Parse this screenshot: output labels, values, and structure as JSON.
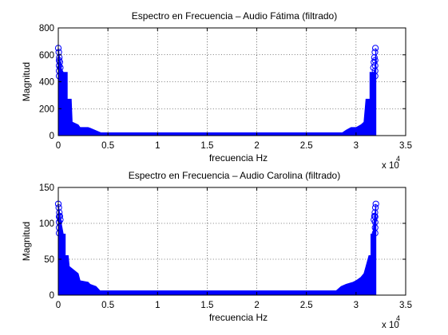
{
  "colors": {
    "series": "#0000ff",
    "axes": "#000000",
    "background": "#ffffff"
  },
  "chart_data": [
    {
      "type": "stem",
      "title": "Espectro en Frecuencia – Audio Fátima (filtrado)",
      "xlabel": "frecuencia Hz",
      "ylabel": "Magnitud",
      "x_exponent": "x 10",
      "x_exponent_power": "4",
      "xlim": [
        0,
        3.5
      ],
      "ylim": [
        0,
        800
      ],
      "xticks": [
        0,
        0.5,
        1,
        1.5,
        2,
        2.5,
        3,
        3.5
      ],
      "xtick_labels": [
        "0",
        "0.5",
        "1",
        "1.5",
        "2",
        "2.5",
        "3",
        "3.5"
      ],
      "yticks": [
        0,
        200,
        400,
        600,
        800
      ],
      "ytick_labels": [
        "0",
        "200",
        "400",
        "600",
        "800"
      ],
      "grid": true,
      "marker": "circle",
      "envelope": [
        [
          0.0,
          650
        ],
        [
          0.03,
          500
        ],
        [
          0.05,
          470
        ],
        [
          0.07,
          470
        ],
        [
          0.09,
          470
        ],
        [
          0.09,
          270
        ],
        [
          0.13,
          270
        ],
        [
          0.14,
          100
        ],
        [
          0.2,
          80
        ],
        [
          0.22,
          60
        ],
        [
          0.3,
          60
        ],
        [
          0.32,
          55
        ],
        [
          0.4,
          30
        ],
        [
          0.45,
          15
        ],
        [
          2.85,
          15
        ],
        [
          2.9,
          40
        ],
        [
          2.95,
          60
        ],
        [
          3.0,
          60
        ],
        [
          3.05,
          80
        ],
        [
          3.08,
          100
        ],
        [
          3.1,
          270
        ],
        [
          3.14,
          270
        ],
        [
          3.14,
          470
        ],
        [
          3.18,
          470
        ],
        [
          3.19,
          500
        ],
        [
          3.2,
          650
        ]
      ],
      "peaks": [
        [
          0.0,
          650
        ],
        [
          0.005,
          620
        ],
        [
          0.01,
          580
        ],
        [
          0.015,
          545
        ],
        [
          0.02,
          505
        ],
        [
          3.175,
          505
        ],
        [
          3.18,
          545
        ],
        [
          3.185,
          580
        ],
        [
          3.19,
          620
        ],
        [
          3.195,
          650
        ]
      ]
    },
    {
      "type": "stem",
      "title": "Espectro en Frecuencia – Audio Carolina (filtrado)",
      "xlabel": "frecuencia Hz",
      "ylabel": "Magnitud",
      "x_exponent": "x 10",
      "x_exponent_power": "4",
      "xlim": [
        0,
        3.5
      ],
      "ylim": [
        0,
        150
      ],
      "xticks": [
        0,
        0.5,
        1,
        1.5,
        2,
        2.5,
        3,
        3.5
      ],
      "xtick_labels": [
        "0",
        "0.5",
        "1",
        "1.5",
        "2",
        "2.5",
        "3",
        "3.5"
      ],
      "yticks": [
        0,
        50,
        100,
        150
      ],
      "ytick_labels": [
        "0",
        "50",
        "100",
        "150"
      ],
      "grid": true,
      "marker": "circle",
      "envelope": [
        [
          0.0,
          127
        ],
        [
          0.03,
          100
        ],
        [
          0.05,
          85
        ],
        [
          0.07,
          85
        ],
        [
          0.07,
          55
        ],
        [
          0.1,
          55
        ],
        [
          0.11,
          40
        ],
        [
          0.2,
          30
        ],
        [
          0.22,
          20
        ],
        [
          0.3,
          18
        ],
        [
          0.32,
          15
        ],
        [
          0.38,
          12
        ],
        [
          0.42,
          6
        ],
        [
          2.8,
          6
        ],
        [
          2.85,
          12
        ],
        [
          2.9,
          15
        ],
        [
          2.97,
          18
        ],
        [
          3.0,
          20
        ],
        [
          3.05,
          25
        ],
        [
          3.08,
          30
        ],
        [
          3.1,
          40
        ],
        [
          3.13,
          55
        ],
        [
          3.15,
          55
        ],
        [
          3.15,
          85
        ],
        [
          3.17,
          85
        ],
        [
          3.18,
          100
        ],
        [
          3.2,
          127
        ]
      ],
      "peaks": [
        [
          0.0,
          127
        ],
        [
          0.005,
          122
        ],
        [
          0.01,
          115
        ],
        [
          0.015,
          110
        ],
        [
          0.02,
          105
        ],
        [
          3.18,
          105
        ],
        [
          3.185,
          110
        ],
        [
          3.19,
          115
        ],
        [
          3.195,
          122
        ],
        [
          3.2,
          127
        ]
      ]
    }
  ]
}
